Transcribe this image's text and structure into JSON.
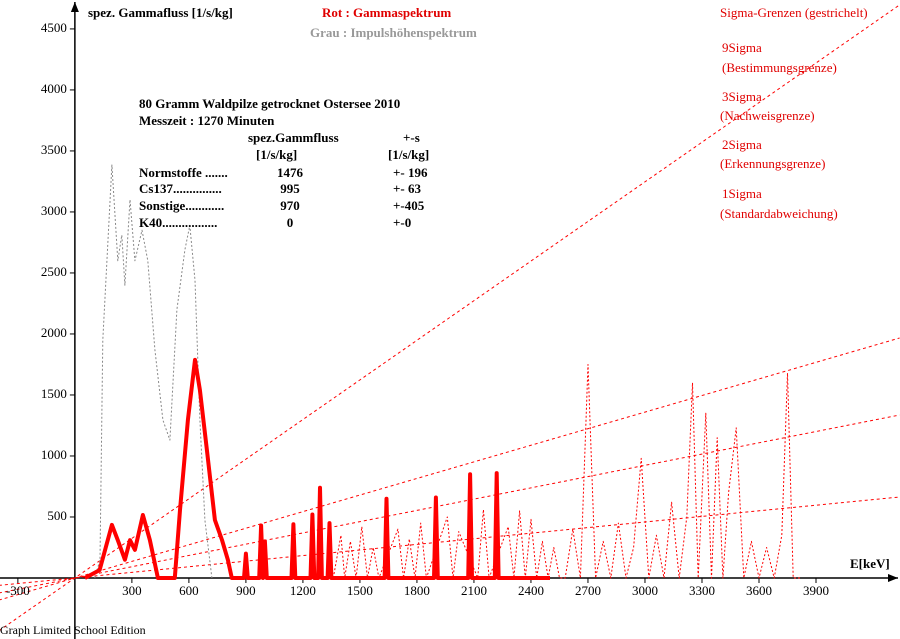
{
  "chart_data": {
    "type": "line",
    "ylabel": "spez. Gammafluss [1/s/kg]",
    "xlabel": "E[keV]",
    "legend_red": "Rot : Gammaspektrum",
    "legend_gray": "Grau : Impulshöhenspektrum",
    "sigma_title": "Sigma-Grenzen (gestrichelt)",
    "sigma_labels": [
      "9Sigma",
      "(Bestimmungsgrenze)",
      "3Sigma",
      "(Nachweisgrenze)",
      "2Sigma",
      "(Erkennungsgrenze)",
      "1Sigma",
      "(Standardabweichung)"
    ],
    "info": {
      "title": [
        "80 Gramm Waldpilze getrocknet Ostersee 2010",
        "Messzeit : 1270 Minuten"
      ],
      "header": [
        "spez.Gammfluss",
        "+-s"
      ],
      "units": [
        "[1/s/kg]",
        "[1/s/kg]"
      ],
      "rows": [
        [
          "Normstoffe .......",
          "1476",
          "+- 196"
        ],
        [
          "Cs137...............",
          "995",
          "+- 63"
        ],
        [
          "Sonstige............",
          "970",
          "+-405"
        ],
        [
          "K40.................",
          "0",
          "+-0"
        ]
      ]
    },
    "footer": "Graph Limited School Edition",
    "xlim": [
      -394,
      4342
    ],
    "ylim": [
      -500,
      4737
    ],
    "xticks": [
      -300,
      300,
      600,
      900,
      1200,
      1500,
      1800,
      2100,
      2400,
      2700,
      3000,
      3300,
      3600,
      3900
    ],
    "yticks": [
      500,
      1000,
      1500,
      2000,
      2500,
      3000,
      3500,
      4000,
      4500
    ],
    "series": [
      {
        "color": "#ff0000",
        "width": 1,
        "dash": "3,3",
        "x": [
          -400,
          4340
        ],
        "values": [
          -433,
          4697
        ]
      },
      {
        "color": "#ff0000",
        "width": 1,
        "dash": "3,3",
        "x": [
          -400,
          4340
        ],
        "values": [
          -181,
          1967
        ]
      },
      {
        "color": "#ff0000",
        "width": 1,
        "dash": "3,3",
        "x": [
          -400,
          4340
        ],
        "values": [
          -123,
          1336
        ]
      },
      {
        "color": "#ff0000",
        "width": 1,
        "dash": "3,3",
        "x": [
          -400,
          4340
        ],
        "values": [
          -61,
          664
        ]
      },
      {
        "color": "#888888",
        "width": 1,
        "dash": "2,2",
        "x": [
          105,
          132,
          147,
          195,
          226,
          247,
          263,
          290,
          316,
          353,
          384,
          421,
          463,
          500,
          537,
          579,
          605,
          632,
          658,
          684,
          721
        ],
        "values": [
          0,
          150,
          1950,
          3385,
          2600,
          2810,
          2400,
          3100,
          2600,
          2850,
          2600,
          1870,
          1295,
          1130,
          2200,
          2690,
          2890,
          2440,
          1295,
          475,
          0
        ]
      },
      {
        "color": "#ff0000",
        "width": 1,
        "dash": "2,2",
        "x": [
          1360,
          1400,
          1420,
          1450,
          1480,
          1510,
          1540,
          1570,
          1600,
          1700,
          1730,
          1760,
          1790,
          1820,
          1850,
          1960,
          1990,
          2020,
          2120,
          2150,
          2180,
          2280,
          2310,
          2340,
          2370,
          2400,
          2430,
          2460,
          2490,
          2520,
          2550,
          2580,
          2620,
          2660,
          2700,
          2740,
          2780,
          2820,
          2860,
          2900,
          2940,
          2980,
          3020,
          3060,
          3100,
          3140,
          3180,
          3220,
          3250,
          3280,
          3320,
          3350,
          3380,
          3410,
          3440,
          3480,
          3520,
          3560,
          3600,
          3640,
          3680,
          3720,
          3750,
          3780,
          3820
        ],
        "values": [
          0,
          350,
          0,
          300,
          0,
          420,
          0,
          250,
          0,
          400,
          0,
          320,
          0,
          450,
          0,
          500,
          0,
          380,
          0,
          560,
          0,
          420,
          0,
          550,
          0,
          480,
          0,
          300,
          0,
          250,
          0,
          0,
          400,
          0,
          1750,
          0,
          300,
          0,
          450,
          0,
          250,
          980,
          0,
          350,
          0,
          620,
          0,
          500,
          1600,
          0,
          1350,
          0,
          1150,
          0,
          700,
          1230,
          0,
          300,
          0,
          250,
          0,
          350,
          1680,
          0,
          0
        ]
      },
      {
        "color": "#ff0000",
        "width": 4,
        "dash": "none",
        "x": [
          53,
          130,
          195,
          226,
          263,
          290,
          316,
          358,
          395,
          437,
          526,
          553,
          595,
          632,
          658,
          695,
          737,
          774,
          805,
          826,
          890,
          900,
          910,
          970,
          980,
          990,
          1000,
          1010,
          1140,
          1150,
          1160,
          1240,
          1250,
          1260,
          1280,
          1290,
          1300,
          1330,
          1340,
          1350,
          1630,
          1640,
          1650,
          1890,
          1900,
          1910,
          2070,
          2080,
          2090,
          2210,
          2220,
          2230,
          2500
        ],
        "values": [
          0,
          65,
          435,
          310,
          150,
          310,
          230,
          516,
          310,
          0,
          0,
          557,
          1295,
          1787,
          1541,
          1049,
          475,
          311,
          148,
          0,
          0,
          200,
          0,
          0,
          430,
          0,
          300,
          0,
          0,
          440,
          0,
          0,
          520,
          0,
          0,
          740,
          0,
          0,
          450,
          0,
          0,
          650,
          0,
          0,
          660,
          0,
          0,
          850,
          0,
          0,
          860,
          0,
          0
        ]
      }
    ]
  }
}
